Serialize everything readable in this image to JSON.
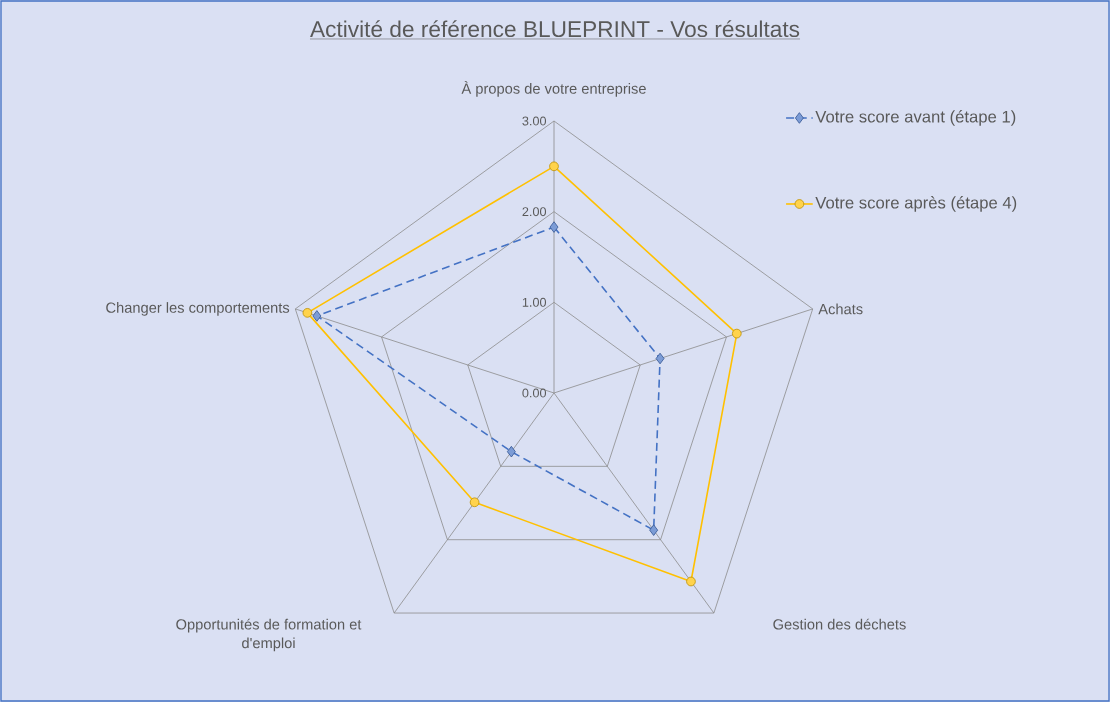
{
  "chart_data": {
    "type": "radar",
    "title": "Activité de référence BLUEPRINT - Vos résultats",
    "categories": [
      "À propos de votre entreprise",
      "Achats",
      "Gestion des déchets",
      "Opportunités de formation et d'emploi",
      "Changer les comportements"
    ],
    "ylim": [
      0,
      3
    ],
    "yticks": [
      {
        "value": 0,
        "label": "0.00"
      },
      {
        "value": 1,
        "label": "1.00"
      },
      {
        "value": 2,
        "label": "2.00"
      },
      {
        "value": 3,
        "label": "3.00"
      }
    ],
    "grid": true,
    "legend": "top right",
    "series": [
      {
        "name": "Votre score avant (étape 1)",
        "color": "#4472c4",
        "values": [
          1.83,
          1.23,
          1.87,
          0.8,
          2.75
        ],
        "marker": "diamond",
        "line_style": "dashed"
      },
      {
        "name": "Votre score après (étape 4)",
        "color": "#ffc000",
        "values": [
          2.5,
          2.12,
          2.57,
          1.49,
          2.86
        ],
        "marker": "circle",
        "line_style": "solid"
      }
    ]
  }
}
